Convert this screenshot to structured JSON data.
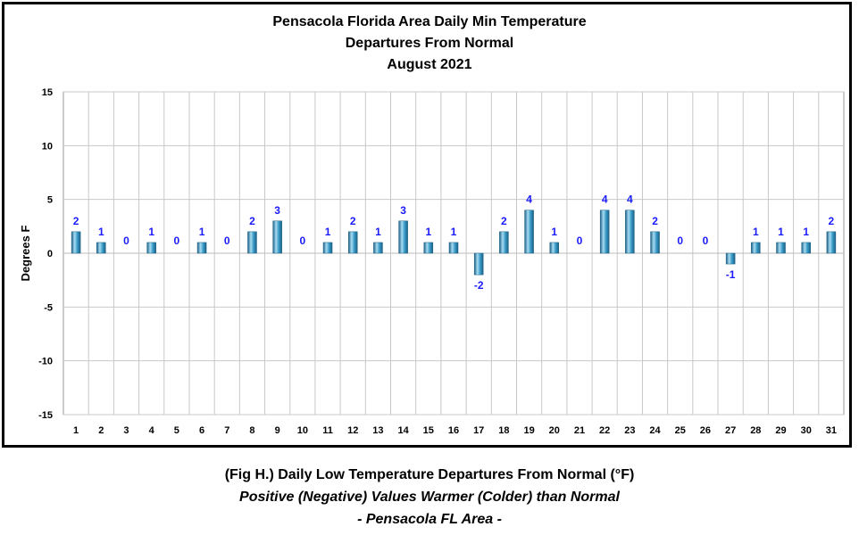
{
  "chart_data": {
    "type": "bar",
    "title_lines": [
      "Pensacola Florida Area Daily Min Temperature",
      "Departures From Normal",
      "August 2021"
    ],
    "xlabel": "",
    "ylabel": "Degrees F",
    "ylim": [
      -15,
      15
    ],
    "yticks": [
      15,
      10,
      5,
      0,
      -5,
      -10,
      -15
    ],
    "grid": true,
    "legend": "none",
    "categories": [
      "1",
      "2",
      "3",
      "4",
      "5",
      "6",
      "7",
      "8",
      "9",
      "10",
      "11",
      "12",
      "13",
      "14",
      "15",
      "16",
      "17",
      "18",
      "19",
      "20",
      "21",
      "22",
      "23",
      "24",
      "25",
      "26",
      "27",
      "28",
      "29",
      "30",
      "31"
    ],
    "values": [
      2,
      1,
      0,
      1,
      0,
      1,
      0,
      2,
      3,
      0,
      1,
      2,
      1,
      3,
      1,
      1,
      -2,
      2,
      4,
      1,
      0,
      4,
      4,
      2,
      0,
      0,
      -1,
      1,
      1,
      1,
      2
    ],
    "colors": {
      "bar": "#3a9cc8",
      "bar_dark": "#1b5f85",
      "bar_light": "#a8dcf2",
      "label": "#1a1aff",
      "grid": "#c8c8c8"
    }
  },
  "caption": {
    "line1": "(Fig H.) Daily Low Temperature Departures From Normal (°F)",
    "line2": "Positive (Negative) Values Warmer (Colder) than Normal",
    "line3": "- Pensacola FL Area -"
  }
}
